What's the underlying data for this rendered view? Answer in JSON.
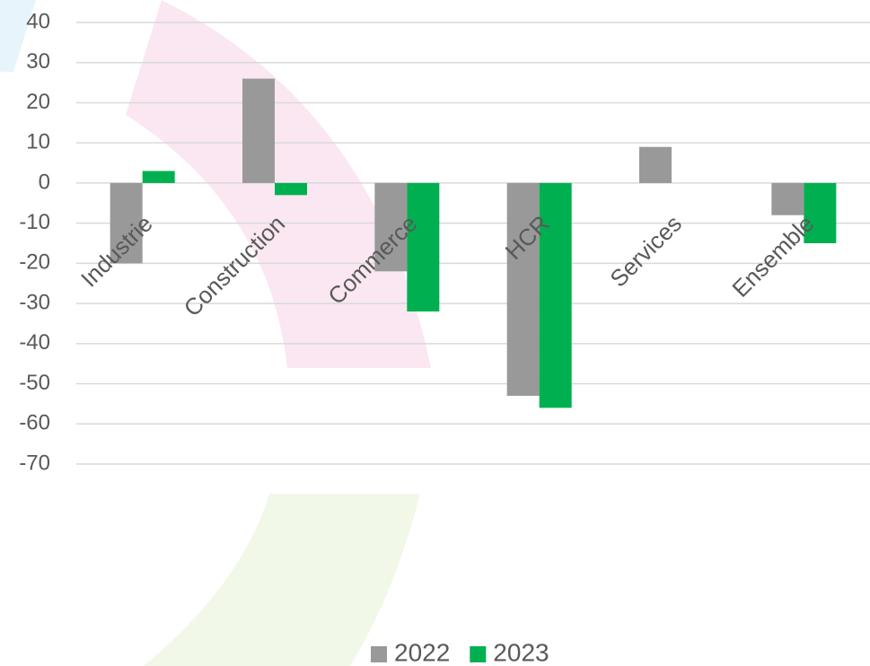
{
  "chart_data": {
    "type": "bar",
    "categories": [
      "Industrie",
      "Construction",
      "Commerce",
      "HCR",
      "Services",
      "Ensemble"
    ],
    "series": [
      {
        "name": "2022",
        "color": "#999999",
        "values": [
          -20,
          26,
          -22,
          -53,
          9,
          -8
        ]
      },
      {
        "name": "2023",
        "color": "#00b050",
        "values": [
          3,
          -3,
          -32,
          -56,
          0,
          -15
        ]
      }
    ],
    "ylim": [
      -70,
      40
    ],
    "yticks": [
      -70,
      -60,
      -50,
      -40,
      -30,
      -20,
      -10,
      0,
      10,
      20,
      30,
      40
    ],
    "grid": true,
    "legend": "bottom"
  }
}
